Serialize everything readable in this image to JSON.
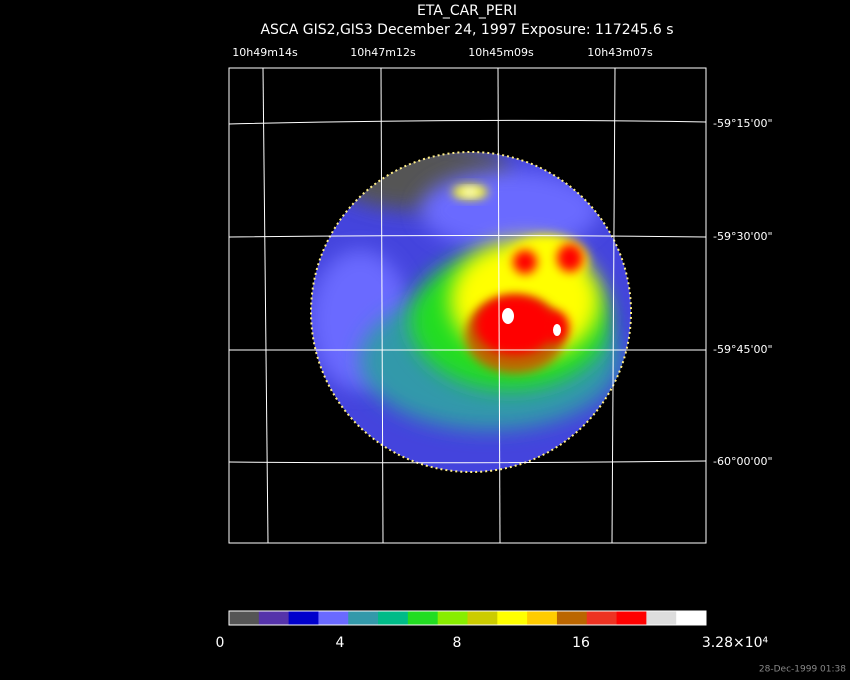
{
  "header": {
    "title": "ETA_CAR_PERI",
    "subtitle": "ASCA GIS2,GIS3 December 24, 1997 Exposure: 117245.6 s"
  },
  "ra_labels": [
    "10h49m14s",
    "10h47m12s",
    "10h45m09s",
    "10h43m07s"
  ],
  "dec_labels": [
    "-59°15'00\"",
    "-59°30'00\"",
    "-59°45'00\"",
    "-60°00'00\""
  ],
  "colorbar": {
    "colors": [
      "#555555",
      "#5533aa",
      "#0000cc",
      "#6a6aff",
      "#3399aa",
      "#00bb88",
      "#22dd22",
      "#88ee00",
      "#cccc00",
      "#ffff00",
      "#ffcc00",
      "#bb6600",
      "#ee3322",
      "#ff0000",
      "#dddddd",
      "#ffffff"
    ],
    "labels": [
      "0",
      "4",
      "8",
      "16",
      "3.28×10⁴"
    ]
  },
  "timestamp": "28-Dec-1999 01:38"
}
